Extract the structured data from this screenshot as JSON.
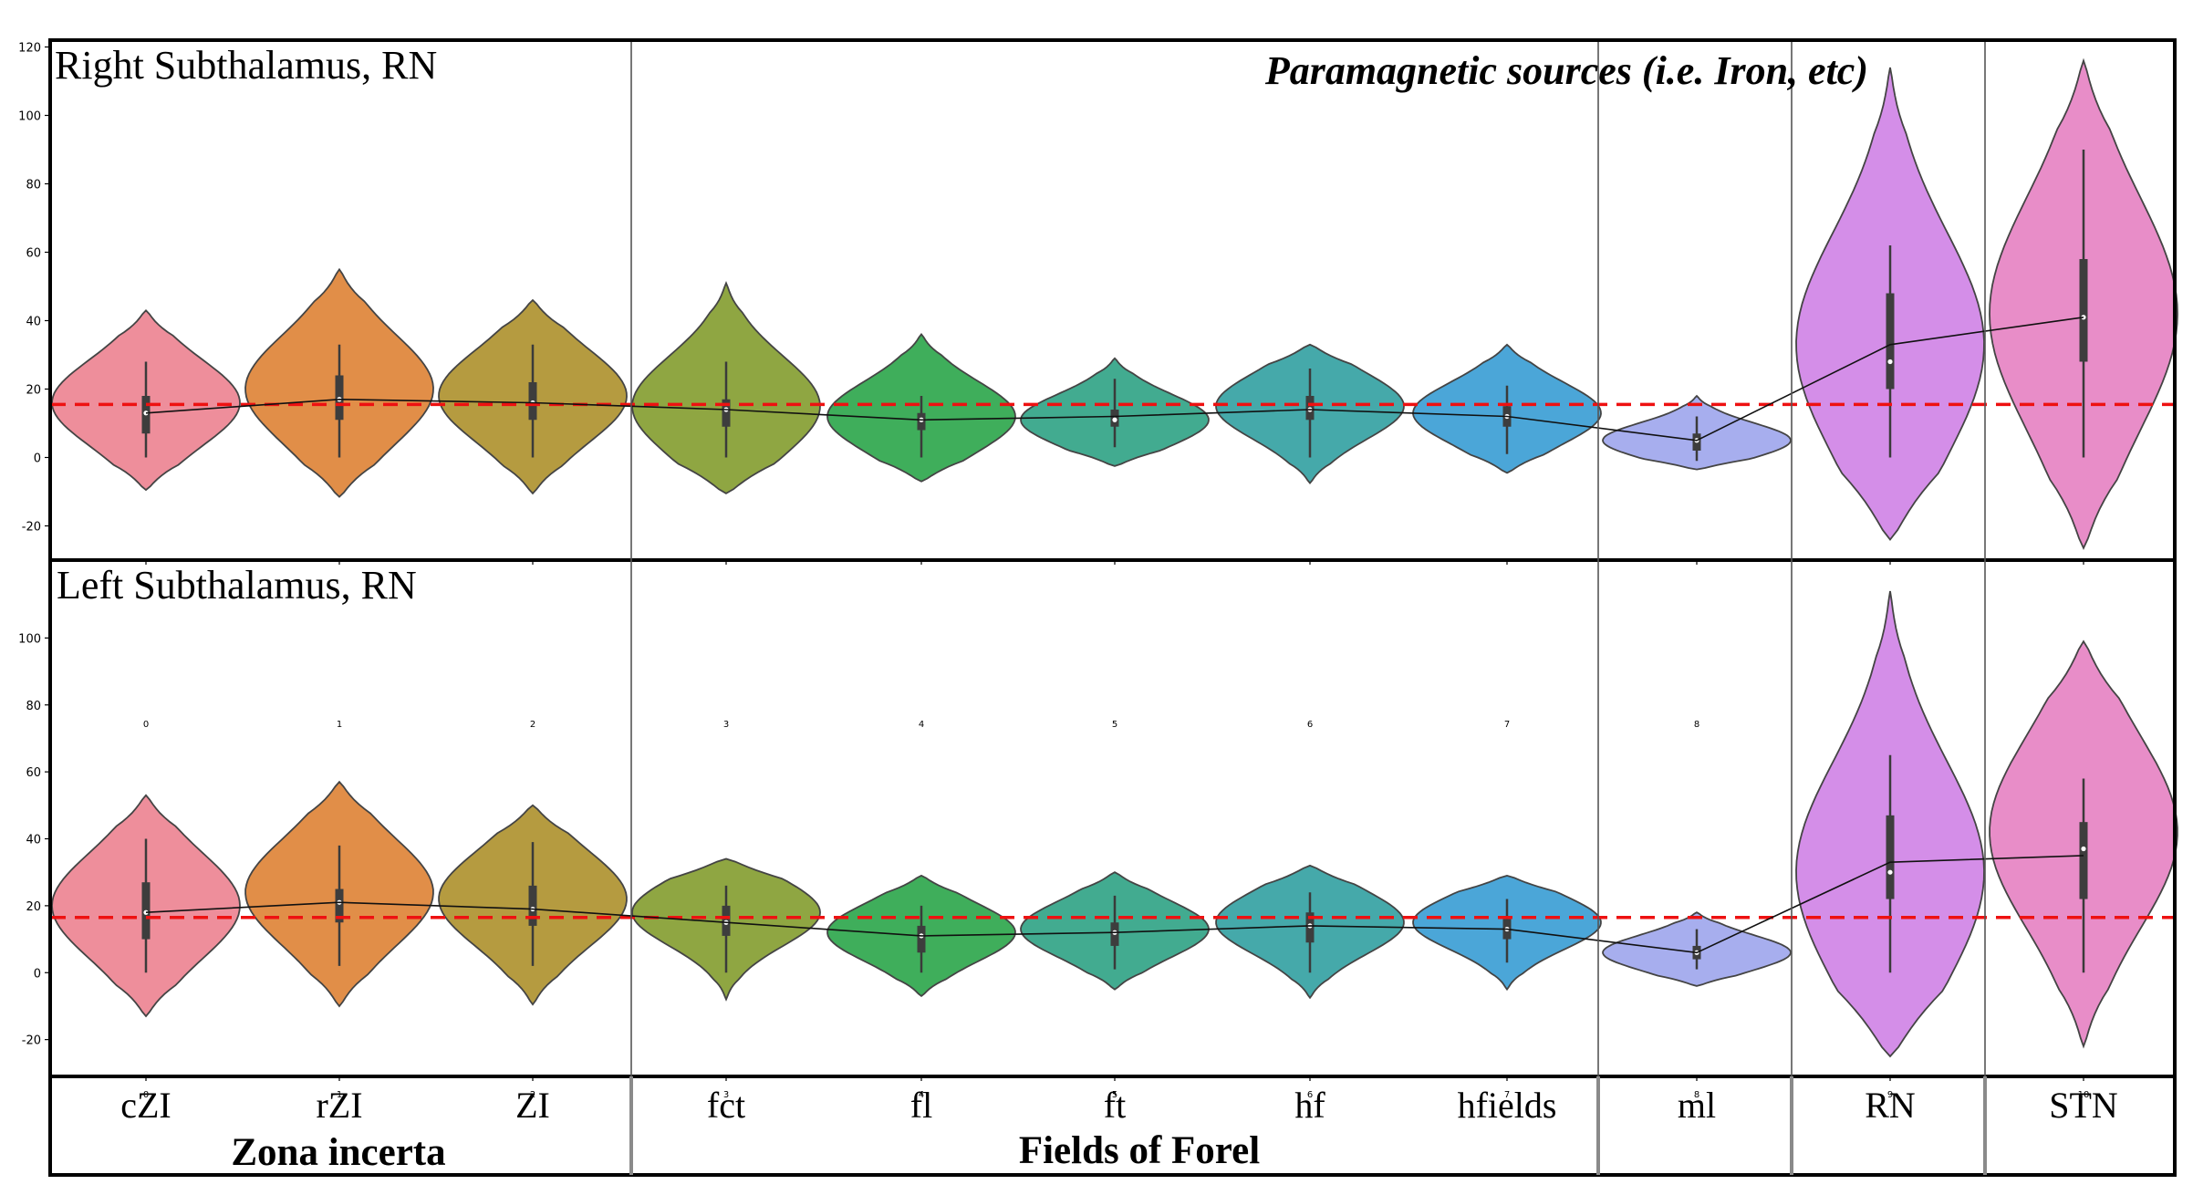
{
  "chart_data": [
    {
      "type": "violin",
      "title": "Right Subthalamus, RN",
      "annotation": "Paramagnetic sources (i.e. Iron, etc)",
      "ylim": [
        -30,
        122
      ],
      "yticks": [
        -20,
        0,
        20,
        40,
        60,
        80,
        100,
        120
      ],
      "reference_line": 15.5,
      "categories": [
        "cZI",
        "rZI",
        "ZI",
        "fct",
        "fl",
        "ft",
        "hf",
        "hfields",
        "ml",
        "RN",
        "STN"
      ],
      "tick_numbers": [
        "0",
        "1",
        "2",
        "3",
        "4",
        "5",
        "6",
        "7",
        "8",
        "9",
        "10"
      ],
      "colors": [
        "#ee8e9b",
        "#e18e48",
        "#b59b40",
        "#8fa642",
        "#3fae5b",
        "#42ab90",
        "#45a9aa",
        "#4ba6d8",
        "#a7aeee",
        "#d48ee8",
        "#e88dc8"
      ],
      "means": [
        13,
        17,
        16,
        14,
        11,
        12,
        14,
        12,
        5,
        33,
        41
      ],
      "violins": [
        {
          "ymin": -9.5,
          "ymax": 43,
          "mode": 16,
          "q1": 7,
          "q3": 18,
          "median": 13,
          "wlow": 0,
          "whigh": 28
        },
        {
          "ymin": -11.5,
          "ymax": 55,
          "mode": 20,
          "q1": 11,
          "q3": 24,
          "median": 17,
          "wlow": 0,
          "whigh": 33
        },
        {
          "ymin": -10.5,
          "ymax": 46,
          "mode": 18,
          "q1": 11,
          "q3": 22,
          "median": 16,
          "wlow": 0,
          "whigh": 33
        },
        {
          "ymin": -10.5,
          "ymax": 51,
          "mode": 15,
          "q1": 9,
          "q3": 17,
          "median": 14,
          "wlow": 0,
          "whigh": 28
        },
        {
          "ymin": -7,
          "ymax": 36,
          "mode": 12,
          "q1": 8,
          "q3": 13,
          "median": 11,
          "wlow": 0,
          "whigh": 18
        },
        {
          "ymin": -2.5,
          "ymax": 29,
          "mode": 11,
          "q1": 9,
          "q3": 14,
          "median": 11,
          "wlow": 3,
          "whigh": 23
        },
        {
          "ymin": -7.5,
          "ymax": 33,
          "mode": 15,
          "q1": 11,
          "q3": 18,
          "median": 14,
          "wlow": 0,
          "whigh": 26
        },
        {
          "ymin": -4.5,
          "ymax": 33,
          "mode": 13,
          "q1": 9,
          "q3": 15,
          "median": 12,
          "wlow": 1,
          "whigh": 21
        },
        {
          "ymin": -3.5,
          "ymax": 18,
          "mode": 5,
          "q1": 2,
          "q3": 7,
          "median": 5,
          "wlow": -1,
          "whigh": 12
        },
        {
          "ymin": -24,
          "ymax": 114,
          "mode": 33,
          "q1": 20,
          "q3": 48,
          "median": 28,
          "wlow": 0,
          "whigh": 62
        },
        {
          "ymin": -26.5,
          "ymax": 116,
          "mode": 42,
          "q1": 28,
          "q3": 58,
          "median": 41,
          "wlow": 0,
          "whigh": 90
        }
      ]
    },
    {
      "type": "violin",
      "title": "Left Subthalamus, RN",
      "ylim": [
        -31,
        123
      ],
      "yticks": [
        -20,
        0,
        20,
        40,
        60,
        80,
        100
      ],
      "reference_line": 16.5,
      "categories": [
        "cZI",
        "rZI",
        "ZI",
        "fct",
        "fl",
        "ft",
        "hf",
        "hfields",
        "ml",
        "RN",
        "STN"
      ],
      "means": [
        18,
        21,
        19,
        15,
        11,
        12,
        14,
        13,
        6,
        33,
        35
      ],
      "violins": [
        {
          "ymin": -13,
          "ymax": 53,
          "mode": 20,
          "q1": 10,
          "q3": 27,
          "median": 18,
          "wlow": 0,
          "whigh": 40
        },
        {
          "ymin": -10,
          "ymax": 57,
          "mode": 24,
          "q1": 15,
          "q3": 25,
          "median": 21,
          "wlow": 2,
          "whigh": 38
        },
        {
          "ymin": -9.5,
          "ymax": 50,
          "mode": 22,
          "q1": 14,
          "q3": 26,
          "median": 19,
          "wlow": 2,
          "whigh": 39
        },
        {
          "ymin": -8,
          "ymax": 34,
          "mode": 18,
          "q1": 11,
          "q3": 20,
          "median": 15,
          "wlow": 0,
          "whigh": 26
        },
        {
          "ymin": -7,
          "ymax": 29,
          "mode": 12,
          "q1": 6,
          "q3": 14,
          "median": 11,
          "wlow": 0,
          "whigh": 20
        },
        {
          "ymin": -5,
          "ymax": 30,
          "mode": 13,
          "q1": 8,
          "q3": 15,
          "median": 12,
          "wlow": 1,
          "whigh": 23
        },
        {
          "ymin": -7.5,
          "ymax": 32,
          "mode": 15,
          "q1": 9,
          "q3": 18,
          "median": 14,
          "wlow": 0,
          "whigh": 24
        },
        {
          "ymin": -5,
          "ymax": 29,
          "mode": 15,
          "q1": 10,
          "q3": 16,
          "median": 13,
          "wlow": 3,
          "whigh": 22
        },
        {
          "ymin": -4,
          "ymax": 18,
          "mode": 6,
          "q1": 4,
          "q3": 8,
          "median": 6,
          "wlow": 1,
          "whigh": 13
        },
        {
          "ymin": -25,
          "ymax": 114,
          "mode": 30,
          "q1": 22,
          "q3": 47,
          "median": 30,
          "wlow": 0,
          "whigh": 65
        },
        {
          "ymin": -22,
          "ymax": 99,
          "mode": 42,
          "q1": 22,
          "q3": 45,
          "median": 37,
          "wlow": 0,
          "whigh": 58
        }
      ]
    }
  ],
  "groups": {
    "zona_incerta": "Zona incerta",
    "fields_of_forel": "Fields of Forel"
  }
}
